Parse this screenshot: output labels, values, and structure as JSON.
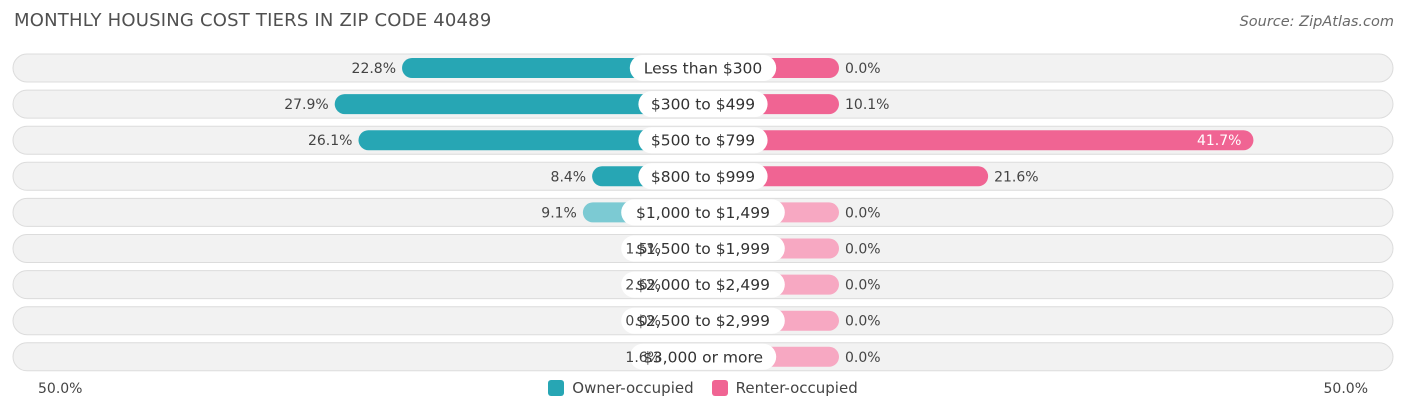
{
  "header": {
    "title": "MONTHLY HOUSING COST TIERS IN ZIP CODE 40489",
    "source": "Source: ZipAtlas.com"
  },
  "axis": {
    "left_label": "50.0%",
    "right_label": "50.0%"
  },
  "legend": {
    "owner_label": "Owner-occupied",
    "renter_label": "Renter-occupied"
  },
  "colors": {
    "owner_strong": "#27a6b4",
    "owner_light": "#7ccad3",
    "renter_strong": "#f06493",
    "renter_light": "#f7a8c2",
    "row_bg": "#f2f2f2",
    "row_border": "#dcdcdc"
  },
  "chart_data": {
    "type": "bar",
    "orientation": "diverging-horizontal",
    "title": "MONTHLY HOUSING COST TIERS IN ZIP CODE 40489",
    "categories": [
      "Less than $300",
      "$300 to $499",
      "$500 to $799",
      "$800 to $999",
      "$1,000 to $1,499",
      "$1,500 to $1,999",
      "$2,000 to $2,499",
      "$2,500 to $2,999",
      "$3,000 or more"
    ],
    "series": [
      {
        "name": "Owner-occupied",
        "values": [
          22.8,
          27.9,
          26.1,
          8.4,
          9.1,
          1.5,
          2.6,
          0.0,
          1.6
        ],
        "labels": [
          "22.8%",
          "27.9%",
          "26.1%",
          "8.4%",
          "9.1%",
          "1.5%",
          "2.6%",
          "0.0%",
          "1.6%"
        ]
      },
      {
        "name": "Renter-occupied",
        "values": [
          0.0,
          10.1,
          41.7,
          21.6,
          0.0,
          0.0,
          0.0,
          0.0,
          0.0
        ],
        "labels": [
          "0.0%",
          "10.1%",
          "41.7%",
          "21.6%",
          "0.0%",
          "0.0%",
          "0.0%",
          "0.0%",
          "0.0%"
        ]
      }
    ],
    "xlim": [
      -50,
      50
    ],
    "legend_position": "bottom-center"
  }
}
